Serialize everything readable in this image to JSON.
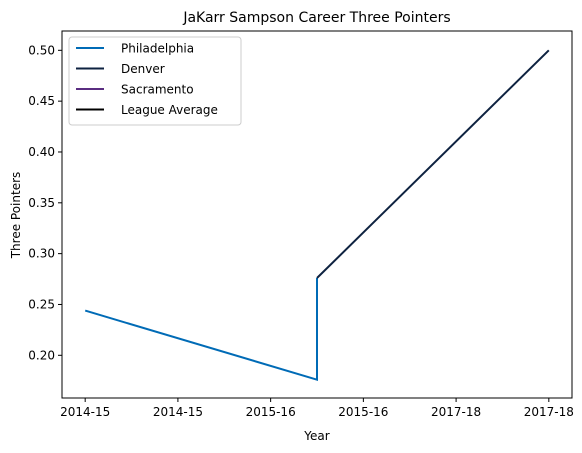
{
  "chart_data": {
    "type": "line",
    "title": "JaKarr Sampson Career Three Pointers",
    "xlabel": "Year",
    "ylabel": "Three Pointers",
    "xticks": [
      "2014-15",
      "2014-15",
      "2015-16",
      "2015-16",
      "2017-18",
      "2017-18"
    ],
    "yticks": [
      "0.20",
      "0.25",
      "0.30",
      "0.35",
      "0.40",
      "0.45",
      "0.50"
    ],
    "xlim": [
      -0.1,
      2.1
    ],
    "ylim": [
      0.158,
      0.519
    ],
    "grid": false,
    "legend_position": "top-left",
    "series": [
      {
        "name": "Philadelphia",
        "color": "#006bb6",
        "x": [
          0,
          1,
          1
        ],
        "y": [
          0.244,
          0.176,
          0.276
        ]
      },
      {
        "name": "Denver",
        "color": "#0e2240",
        "x": [
          1,
          2
        ],
        "y": [
          0.276,
          0.5
        ]
      },
      {
        "name": "Sacramento",
        "color": "#5a2d81",
        "x": [],
        "y": []
      },
      {
        "name": "League Average",
        "color": "#000000",
        "x": [],
        "y": []
      }
    ]
  }
}
